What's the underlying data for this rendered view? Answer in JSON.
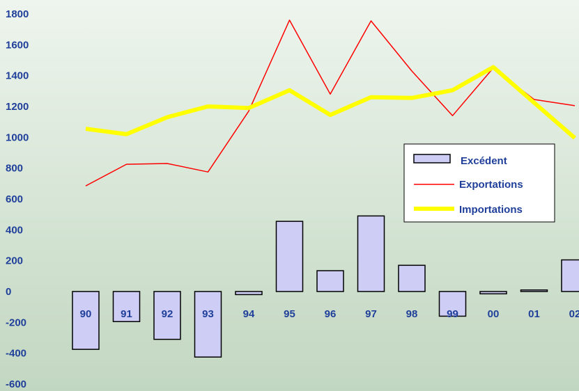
{
  "chart_data": {
    "type": "bar",
    "title": "",
    "xlabel": "",
    "ylabel": "",
    "ylim": [
      -600,
      1800
    ],
    "yticks": [
      1800,
      1600,
      1400,
      1200,
      1000,
      800,
      600,
      400,
      200,
      0,
      -200,
      -400,
      -600
    ],
    "categories": [
      "90",
      "91",
      "92",
      "93",
      "94",
      "95",
      "96",
      "97",
      "98",
      "99",
      "00",
      "01",
      "02"
    ],
    "series": [
      {
        "name": "Excédent",
        "kind": "bar",
        "color": "#cdcdf5",
        "values": [
          -375,
          -195,
          -310,
          -425,
          -20,
          455,
          135,
          490,
          170,
          -160,
          -15,
          10,
          205
        ]
      },
      {
        "name": "Exportations",
        "kind": "line",
        "color": "#ff0000",
        "values": [
          685,
          825,
          830,
          775,
          1170,
          1760,
          1280,
          1755,
          1430,
          1140,
          1450,
          1245,
          1205
        ]
      },
      {
        "name": "Importations",
        "kind": "line",
        "color": "#ffff00",
        "values": [
          1055,
          1020,
          1130,
          1200,
          1190,
          1305,
          1145,
          1260,
          1255,
          1305,
          1455,
          1225,
          995
        ]
      }
    ],
    "legend": {
      "position": "right",
      "entries": [
        "Excédent",
        "Exportations",
        "Importations"
      ]
    },
    "grid": false
  }
}
